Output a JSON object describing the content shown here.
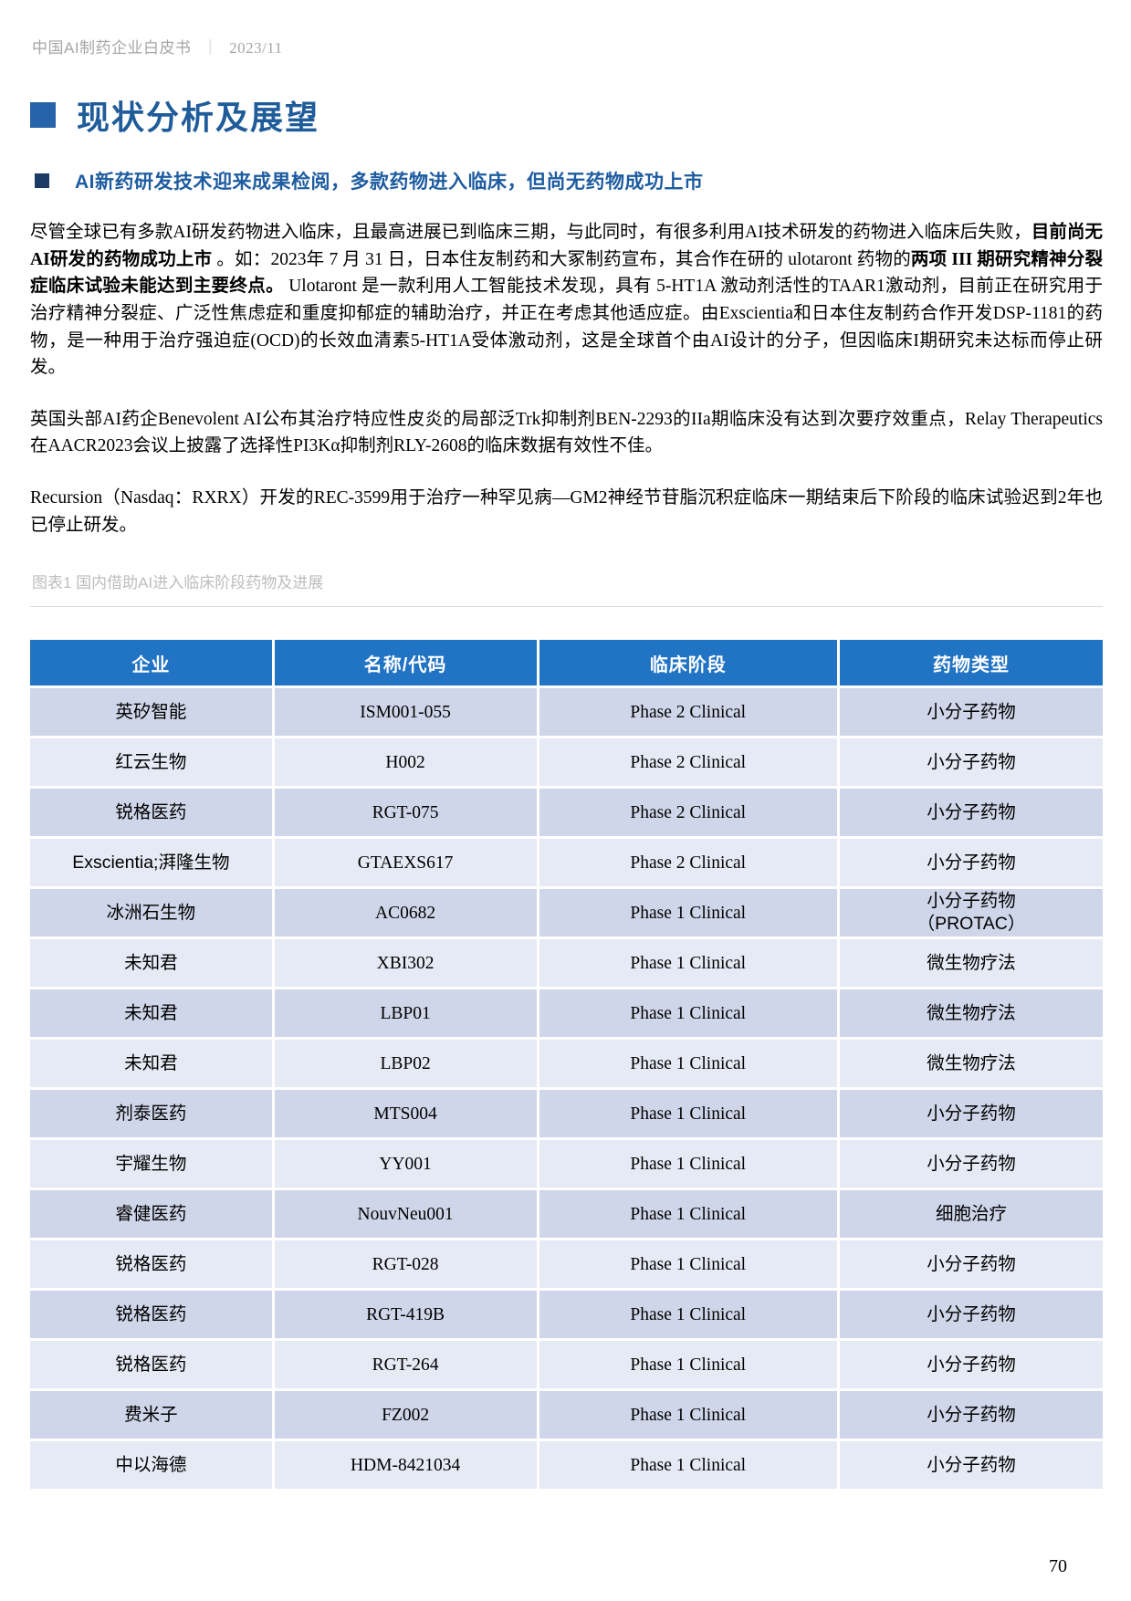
{
  "colors": {
    "brand_blue": "#2173C4",
    "row_dark": "#CFD6E9",
    "row_light": "#E6EAF5",
    "title_blue": "#1F5C99",
    "title_square_blue": "#2763A8",
    "subtitle_blue": "#1E5CA0",
    "subtitle_square_navy": "#1B3A64",
    "header_gray": "#A6A6A6",
    "caption_gray": "#BDBDBD",
    "rule_gray": "#DCDCDC"
  },
  "doc_header": {
    "title": "中国AI制药企业白皮书",
    "separator": "｜",
    "date": "2023/11"
  },
  "section": {
    "title": "现状分析及展望"
  },
  "sub_heading": {
    "text": "AI新药研发技术迎来成果检阅，多款药物进入临床，但尚无药物成功上市"
  },
  "paragraphs": [
    {
      "segments": [
        {
          "text": "尽管全球已有多款AI研发药物进入临床，且最高进展已到临床三期，与此同时，有很多利用AI技术研发的药物进入临床后失败，",
          "bold": false
        },
        {
          "text": "目前尚无AI研发的药物成功上市",
          "bold": true
        },
        {
          "text": " 。如：2023年 7 月 31 日，日本住友制药和大冢制药宣布，其合作在研的 ulotaront 药物的",
          "bold": false
        },
        {
          "text": "两项 III 期研究精神分裂症临床试验未能达到主要终点。",
          "bold": true
        },
        {
          "text": " Ulotaront 是一款利用人工智能技术发现，具有 5-HT1A 激动剂活性的TAAR1激动剂，目前正在研究用于治疗精神分裂症、广泛性焦虑症和重度抑郁症的辅助治疗，并正在考虑其他适应症。由Exscientia和日本住友制药合作开发DSP-1181的药物，是一种用于治疗强迫症(OCD)的长效血清素5-HT1A受体激动剂，这是全球首个由AI设计的分子，但因临床I期研究未达标而停止研发。",
          "bold": false
        }
      ]
    },
    {
      "segments": [
        {
          "text": "英国头部AI药企Benevolent AI公布其治疗特应性皮炎的局部泛Trk抑制剂BEN-2293的IIa期临床没有达到次要疗效重点，Relay Therapeutics在AACR2023会议上披露了选择性PI3Kα抑制剂RLY-2608的临床数据有效性不佳。",
          "bold": false
        }
      ]
    },
    {
      "segments": [
        {
          "text": "Recursion（Nasdaq：RXRX）开发的REC-3599用于治疗一种罕见病—GM2神经节苷脂沉积症临床一期结束后下阶段的临床试验迟到2年也已停止研发。",
          "bold": false
        }
      ]
    }
  ],
  "figure": {
    "caption": "图表1 国内借助AI进入临床阶段药物及进展"
  },
  "table": {
    "headers": [
      "企业",
      "名称/代码",
      "临床阶段",
      "药物类型"
    ],
    "rows": [
      {
        "company": "英矽智能",
        "code": "ISM001-055",
        "phase": "Phase 2 Clinical",
        "type": "小分子药物"
      },
      {
        "company": "红云生物",
        "code": "H002",
        "phase": "Phase 2 Clinical",
        "type": "小分子药物"
      },
      {
        "company": "锐格医药",
        "code": "RGT-075",
        "phase": "Phase 2 Clinical",
        "type": "小分子药物"
      },
      {
        "company": "Exscientia;湃隆生物",
        "code": "GTAEXS617",
        "phase": "Phase 2 Clinical",
        "type": "小分子药物"
      },
      {
        "company": "冰洲石生物",
        "code": "AC0682",
        "phase": "Phase 1 Clinical",
        "type": "小分子药物\n（PROTAC）"
      },
      {
        "company": "未知君",
        "code": "XBI302",
        "phase": "Phase 1 Clinical",
        "type": "微生物疗法"
      },
      {
        "company": "未知君",
        "code": "LBP01",
        "phase": "Phase 1 Clinical",
        "type": "微生物疗法"
      },
      {
        "company": "未知君",
        "code": "LBP02",
        "phase": "Phase 1 Clinical",
        "type": "微生物疗法"
      },
      {
        "company": "剂泰医药",
        "code": "MTS004",
        "phase": "Phase 1 Clinical",
        "type": "小分子药物"
      },
      {
        "company": "宇耀生物",
        "code": "YY001",
        "phase": "Phase 1 Clinical",
        "type": "小分子药物"
      },
      {
        "company": "睿健医药",
        "code": "NouvNeu001",
        "phase": "Phase 1 Clinical",
        "type": "细胞治疗"
      },
      {
        "company": "锐格医药",
        "code": "RGT-028",
        "phase": "Phase 1 Clinical",
        "type": "小分子药物"
      },
      {
        "company": "锐格医药",
        "code": "RGT-419B",
        "phase": "Phase 1 Clinical",
        "type": "小分子药物"
      },
      {
        "company": "锐格医药",
        "code": "RGT-264",
        "phase": "Phase 1 Clinical",
        "type": "小分子药物"
      },
      {
        "company": "费米子",
        "code": "FZ002",
        "phase": "Phase 1 Clinical",
        "type": "小分子药物"
      },
      {
        "company": "中以海德",
        "code": "HDM-8421034",
        "phase": "Phase 1 Clinical",
        "type": "小分子药物"
      }
    ]
  },
  "footer": {
    "page_number": "70"
  }
}
